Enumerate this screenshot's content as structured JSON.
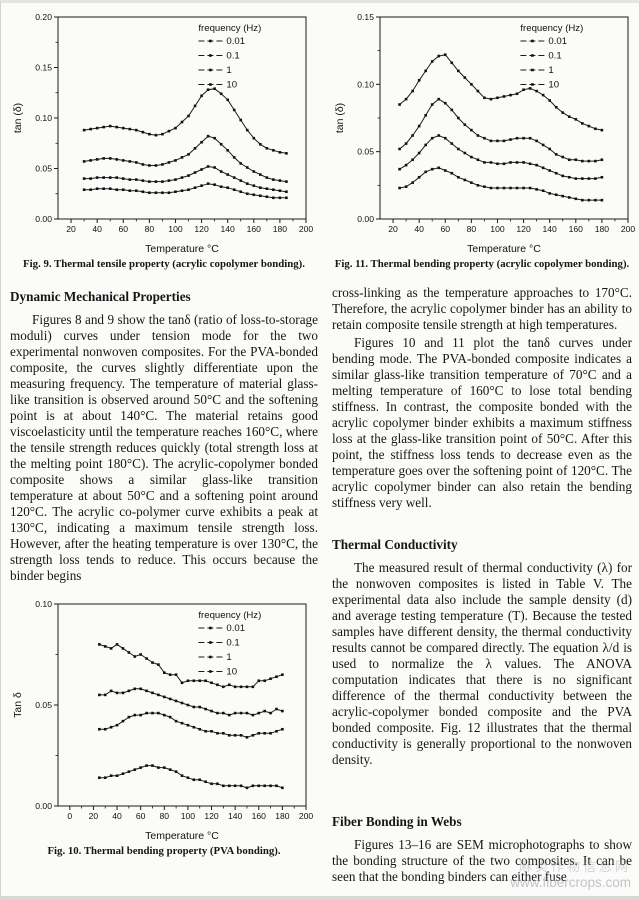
{
  "chart_data": [
    {
      "id": "fig9",
      "type": "line",
      "xlabel": "Temperature °C",
      "ylabel": "tan (δ)",
      "xlim": [
        10,
        200
      ],
      "ylim": [
        0,
        0.2
      ],
      "xticks": [
        20,
        40,
        60,
        80,
        100,
        120,
        140,
        160,
        180,
        200
      ],
      "yticks": [
        0,
        0.05,
        0.1,
        0.15,
        0.2
      ],
      "ytick_decimals": 2,
      "legend_title": "frequency (Hz)",
      "grid": false,
      "legend_position": "top-right-inside",
      "x": [
        30,
        35,
        40,
        45,
        50,
        55,
        60,
        65,
        70,
        75,
        80,
        85,
        90,
        95,
        100,
        105,
        110,
        115,
        120,
        125,
        130,
        135,
        140,
        145,
        150,
        155,
        160,
        165,
        170,
        175,
        180,
        185
      ],
      "series": [
        {
          "name": "0.01",
          "values": [
            0.088,
            0.089,
            0.09,
            0.091,
            0.092,
            0.091,
            0.09,
            0.089,
            0.088,
            0.086,
            0.084,
            0.083,
            0.084,
            0.087,
            0.09,
            0.096,
            0.102,
            0.112,
            0.122,
            0.128,
            0.129,
            0.124,
            0.118,
            0.108,
            0.098,
            0.088,
            0.08,
            0.074,
            0.07,
            0.068,
            0.066,
            0.065
          ]
        },
        {
          "name": "0.1",
          "values": [
            0.057,
            0.058,
            0.059,
            0.06,
            0.06,
            0.059,
            0.058,
            0.057,
            0.056,
            0.054,
            0.053,
            0.053,
            0.054,
            0.056,
            0.058,
            0.061,
            0.064,
            0.07,
            0.076,
            0.082,
            0.08,
            0.074,
            0.068,
            0.061,
            0.055,
            0.051,
            0.047,
            0.044,
            0.041,
            0.039,
            0.038,
            0.037
          ]
        },
        {
          "name": "1",
          "values": [
            0.04,
            0.04,
            0.041,
            0.041,
            0.041,
            0.041,
            0.04,
            0.039,
            0.039,
            0.038,
            0.037,
            0.037,
            0.037,
            0.038,
            0.039,
            0.041,
            0.043,
            0.046,
            0.049,
            0.052,
            0.051,
            0.047,
            0.044,
            0.041,
            0.038,
            0.035,
            0.033,
            0.031,
            0.03,
            0.029,
            0.028,
            0.027
          ]
        },
        {
          "name": "10",
          "values": [
            0.029,
            0.029,
            0.03,
            0.03,
            0.03,
            0.029,
            0.029,
            0.028,
            0.028,
            0.027,
            0.026,
            0.026,
            0.026,
            0.026,
            0.027,
            0.028,
            0.029,
            0.031,
            0.033,
            0.035,
            0.034,
            0.032,
            0.031,
            0.029,
            0.027,
            0.025,
            0.024,
            0.023,
            0.022,
            0.021,
            0.021,
            0.021
          ]
        }
      ],
      "caption": "Fig. 9.  Thermal tensile property (acrylic copolymer bonding)."
    },
    {
      "id": "fig10",
      "type": "line",
      "xlabel": "Temperature °C",
      "ylabel": "Tan δ",
      "xlim": [
        -10,
        200
      ],
      "ylim": [
        0,
        0.1
      ],
      "xticks": [
        0,
        20,
        40,
        60,
        80,
        100,
        120,
        140,
        160,
        180,
        200
      ],
      "yticks": [
        0,
        0.05,
        0.1
      ],
      "ytick_decimals": 2,
      "legend_title": "frequency (Hz)",
      "grid": false,
      "legend_position": "top-right-inside",
      "x": [
        25,
        30,
        35,
        40,
        45,
        50,
        55,
        60,
        65,
        70,
        75,
        80,
        85,
        90,
        95,
        100,
        105,
        110,
        115,
        120,
        125,
        130,
        135,
        140,
        145,
        150,
        155,
        160,
        165,
        170,
        175,
        180
      ],
      "series": [
        {
          "name": "0.01",
          "values": [
            0.08,
            0.079,
            0.078,
            0.08,
            0.078,
            0.076,
            0.074,
            0.075,
            0.073,
            0.071,
            0.07,
            0.066,
            0.065,
            0.065,
            0.061,
            0.062,
            0.062,
            0.062,
            0.062,
            0.061,
            0.06,
            0.059,
            0.06,
            0.059,
            0.059,
            0.059,
            0.059,
            0.062,
            0.062,
            0.063,
            0.064,
            0.065
          ]
        },
        {
          "name": "0.1",
          "values": [
            0.055,
            0.055,
            0.057,
            0.056,
            0.056,
            0.057,
            0.058,
            0.058,
            0.057,
            0.056,
            0.055,
            0.054,
            0.053,
            0.052,
            0.051,
            0.05,
            0.049,
            0.049,
            0.048,
            0.047,
            0.046,
            0.046,
            0.045,
            0.046,
            0.046,
            0.046,
            0.045,
            0.046,
            0.047,
            0.046,
            0.048,
            0.047
          ]
        },
        {
          "name": "1",
          "values": [
            0.038,
            0.038,
            0.039,
            0.04,
            0.042,
            0.044,
            0.045,
            0.045,
            0.046,
            0.046,
            0.046,
            0.045,
            0.044,
            0.042,
            0.041,
            0.04,
            0.039,
            0.038,
            0.037,
            0.037,
            0.036,
            0.036,
            0.035,
            0.035,
            0.035,
            0.034,
            0.035,
            0.036,
            0.036,
            0.036,
            0.037,
            0.038
          ]
        },
        {
          "name": "10",
          "values": [
            0.014,
            0.014,
            0.015,
            0.015,
            0.016,
            0.017,
            0.018,
            0.019,
            0.02,
            0.02,
            0.019,
            0.019,
            0.018,
            0.017,
            0.015,
            0.014,
            0.013,
            0.013,
            0.012,
            0.011,
            0.011,
            0.01,
            0.01,
            0.01,
            0.01,
            0.009,
            0.01,
            0.01,
            0.01,
            0.01,
            0.01,
            0.009
          ]
        }
      ],
      "caption": "Fig. 10.  Thermal bending property (PVA bonding)."
    },
    {
      "id": "fig11",
      "type": "line",
      "xlabel": "Temperature °C",
      "ylabel": "tan (δ)",
      "xlim": [
        10,
        200
      ],
      "ylim": [
        0,
        0.15
      ],
      "xticks": [
        20,
        40,
        60,
        80,
        100,
        120,
        140,
        160,
        180,
        200
      ],
      "yticks": [
        0,
        0.05,
        0.1,
        0.15
      ],
      "ytick_decimals": 2,
      "legend_title": "frequency (Hz)",
      "grid": false,
      "legend_position": "top-right-inside",
      "x": [
        25,
        30,
        35,
        40,
        45,
        50,
        55,
        60,
        65,
        70,
        75,
        80,
        85,
        90,
        95,
        100,
        105,
        110,
        115,
        120,
        125,
        130,
        135,
        140,
        145,
        150,
        155,
        160,
        165,
        170,
        175,
        180
      ],
      "series": [
        {
          "name": "0.01",
          "values": [
            0.085,
            0.089,
            0.095,
            0.103,
            0.11,
            0.117,
            0.121,
            0.122,
            0.116,
            0.11,
            0.105,
            0.1,
            0.095,
            0.09,
            0.089,
            0.09,
            0.091,
            0.092,
            0.093,
            0.096,
            0.097,
            0.095,
            0.092,
            0.088,
            0.083,
            0.079,
            0.076,
            0.074,
            0.071,
            0.069,
            0.067,
            0.066
          ]
        },
        {
          "name": "0.1",
          "values": [
            0.052,
            0.056,
            0.062,
            0.069,
            0.077,
            0.085,
            0.089,
            0.086,
            0.081,
            0.075,
            0.07,
            0.066,
            0.062,
            0.06,
            0.058,
            0.058,
            0.058,
            0.059,
            0.06,
            0.06,
            0.06,
            0.058,
            0.055,
            0.052,
            0.048,
            0.046,
            0.044,
            0.044,
            0.043,
            0.043,
            0.043,
            0.044
          ]
        },
        {
          "name": "1",
          "values": [
            0.037,
            0.04,
            0.044,
            0.049,
            0.055,
            0.06,
            0.062,
            0.06,
            0.056,
            0.052,
            0.049,
            0.046,
            0.044,
            0.042,
            0.042,
            0.041,
            0.041,
            0.042,
            0.042,
            0.042,
            0.041,
            0.04,
            0.038,
            0.036,
            0.034,
            0.032,
            0.031,
            0.03,
            0.03,
            0.03,
            0.03,
            0.031
          ]
        },
        {
          "name": "10",
          "values": [
            0.023,
            0.024,
            0.027,
            0.031,
            0.035,
            0.037,
            0.038,
            0.036,
            0.034,
            0.031,
            0.029,
            0.027,
            0.025,
            0.024,
            0.023,
            0.023,
            0.023,
            0.023,
            0.023,
            0.023,
            0.023,
            0.022,
            0.021,
            0.019,
            0.018,
            0.017,
            0.016,
            0.015,
            0.014,
            0.014,
            0.014,
            0.014
          ]
        }
      ],
      "caption": "Fig. 11.  Thermal bending property (acrylic copolymer bonding)."
    }
  ],
  "text": {
    "left": {
      "heading1": "Dynamic Mechanical Properties",
      "para1": "Figures 8 and 9 show the tanδ (ratio of loss-to-storage moduli) curves under tension mode for the two experimental nonwoven composites. For the PVA-bonded composite, the curves slightly differentiate upon the measuring frequency. The temperature of material glass-like transition is observed around 50°C and the softening point is at about 140°C. The material retains good viscoelasticity until the temperature reaches 160°C, where the tensile strength reduces quickly (total strength loss at the melting point 180°C). The acrylic-copolymer bonded composite shows a similar glass-like transition temperature at about 50°C and a softening point around 120°C. The acrylic co-polymer curve exhibits a peak at 130°C, indicating a maximum tensile strength loss. However, after the heating temperature is over 130°C, the strength loss tends to reduce. This occurs because the binder begins"
    },
    "right": {
      "para1": "cross-linking as the temperature approaches to 170°C. Therefore, the acrylic copolymer binder has an ability to retain composite tensile strength at high temperatures.",
      "para2": "Figures 10 and 11 plot the tanδ curves under bending mode. The PVA-bonded composite indicates a similar glass-like transition temperature of 70°C and a melting temperature of 160°C to lose total bending stiffness. In contrast, the composite bonded with the acrylic copolymer binder exhibits a maximum stiffness loss at the glass-like transition point of 50°C. After this point, the stiffness loss tends to decrease even as the temperature goes over the softening point of 120°C. The acrylic copolymer binder can also retain the bending stiffness very well.",
      "heading2": "Thermal Conductivity",
      "para3": "The measured result of thermal conductivity (λ) for the nonwoven composites is listed in Table V. The experimental data also include the sample density (d) and average testing temperature (T). Because the tested samples have different density, the thermal conductivity results cannot be compared directly. The equation λ/d is used to normalize the λ values. The ANOVA computation indicates that there is no significant difference of the thermal conductivity between the acrylic-copolymer bonded composite and the PVA bonded composite. Fig. 12 illustrates that the thermal conductivity is generally proportional to the nonwoven density.",
      "heading3": "Fiber Bonding in Webs",
      "para4": "Figures 13–16 are SEM microphotographs to show the bonding structure of the two composites. It can be seen that the bonding binders can either fuse"
    }
  },
  "watermark": {
    "line1": "麻类作物信息网",
    "line2": "www.fibercrops.com"
  },
  "colors": {
    "ink": "#161616",
    "chart_stroke": "#1b1b1b",
    "watermark_gray": "#9aa2a7"
  }
}
